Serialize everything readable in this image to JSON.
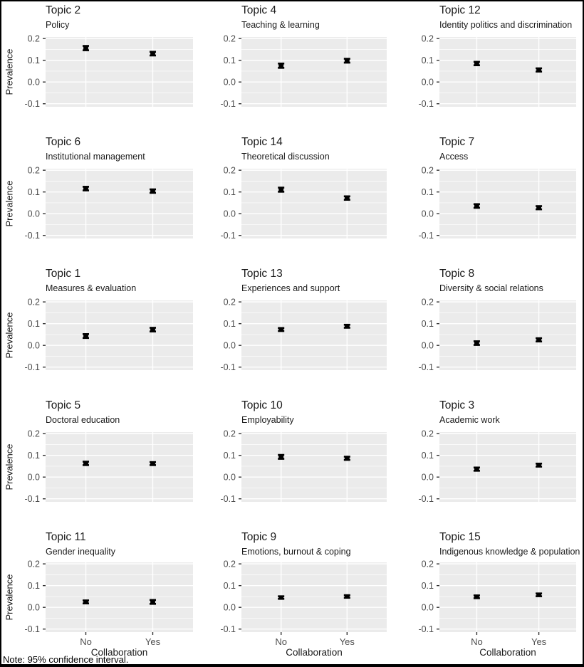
{
  "figure": {
    "note": "Note: 95% confidence interval.",
    "colors": {
      "panel_bg": "#ebebeb",
      "grid": "#ffffff",
      "point": "#000000",
      "tick_mark": "#333333",
      "tick_label": "#4d4d4d",
      "title_text": "#1a1a1a",
      "border": "#000000"
    }
  },
  "chart_data": {
    "type": "pointrange-facets",
    "facet_grid": {
      "rows": 5,
      "cols": 3
    },
    "xlabel": "Collaboration",
    "ylabel": "Prevalence",
    "categories": [
      "No",
      "Yes"
    ],
    "y_ticks": [
      0.2,
      0.1,
      0.0,
      -0.1
    ],
    "y_minor_ticks": [
      0.15,
      0.05,
      -0.05
    ],
    "ylim": [
      -0.114,
      0.207
    ],
    "legend": "none",
    "panels": [
      {
        "title": "Topic 2",
        "subtitle": "Policy",
        "points": [
          {
            "category": "No",
            "mean": 0.156,
            "lo": 0.146,
            "hi": 0.166
          },
          {
            "category": "Yes",
            "mean": 0.13,
            "lo": 0.122,
            "hi": 0.139
          }
        ]
      },
      {
        "title": "Topic 4",
        "subtitle": "Teaching & learning",
        "points": [
          {
            "category": "No",
            "mean": 0.075,
            "lo": 0.065,
            "hi": 0.085
          },
          {
            "category": "Yes",
            "mean": 0.098,
            "lo": 0.089,
            "hi": 0.107
          }
        ]
      },
      {
        "title": "Topic 12",
        "subtitle": "Identity politics and discrimination",
        "points": [
          {
            "category": "No",
            "mean": 0.085,
            "lo": 0.077,
            "hi": 0.093
          },
          {
            "category": "Yes",
            "mean": 0.055,
            "lo": 0.048,
            "hi": 0.063
          }
        ]
      },
      {
        "title": "Topic 6",
        "subtitle": "Institutional management",
        "points": [
          {
            "category": "No",
            "mean": 0.115,
            "lo": 0.107,
            "hi": 0.124
          },
          {
            "category": "Yes",
            "mean": 0.104,
            "lo": 0.096,
            "hi": 0.112
          }
        ]
      },
      {
        "title": "Topic 14",
        "subtitle": "Theoretical discussion",
        "points": [
          {
            "category": "No",
            "mean": 0.11,
            "lo": 0.101,
            "hi": 0.12
          },
          {
            "category": "Yes",
            "mean": 0.072,
            "lo": 0.064,
            "hi": 0.08
          }
        ]
      },
      {
        "title": "Topic 7",
        "subtitle": "Access",
        "points": [
          {
            "category": "No",
            "mean": 0.035,
            "lo": 0.027,
            "hi": 0.044
          },
          {
            "category": "Yes",
            "mean": 0.027,
            "lo": 0.02,
            "hi": 0.035
          }
        ]
      },
      {
        "title": "Topic 1",
        "subtitle": "Measures & evaluation",
        "points": [
          {
            "category": "No",
            "mean": 0.043,
            "lo": 0.034,
            "hi": 0.052
          },
          {
            "category": "Yes",
            "mean": 0.072,
            "lo": 0.064,
            "hi": 0.081
          }
        ]
      },
      {
        "title": "Topic 13",
        "subtitle": "Experiences and support",
        "points": [
          {
            "category": "No",
            "mean": 0.073,
            "lo": 0.066,
            "hi": 0.08
          },
          {
            "category": "Yes",
            "mean": 0.088,
            "lo": 0.081,
            "hi": 0.095
          }
        ]
      },
      {
        "title": "Topic 8",
        "subtitle": "Diversity & social relations",
        "points": [
          {
            "category": "No",
            "mean": 0.01,
            "lo": 0.002,
            "hi": 0.019
          },
          {
            "category": "Yes",
            "mean": 0.025,
            "lo": 0.018,
            "hi": 0.033
          }
        ]
      },
      {
        "title": "Topic 5",
        "subtitle": "Doctoral education",
        "points": [
          {
            "category": "No",
            "mean": 0.063,
            "lo": 0.055,
            "hi": 0.071
          },
          {
            "category": "Yes",
            "mean": 0.062,
            "lo": 0.055,
            "hi": 0.069
          }
        ]
      },
      {
        "title": "Topic 10",
        "subtitle": "Employability",
        "points": [
          {
            "category": "No",
            "mean": 0.093,
            "lo": 0.084,
            "hi": 0.102
          },
          {
            "category": "Yes",
            "mean": 0.086,
            "lo": 0.079,
            "hi": 0.094
          }
        ]
      },
      {
        "title": "Topic 3",
        "subtitle": "Academic work",
        "points": [
          {
            "category": "No",
            "mean": 0.036,
            "lo": 0.029,
            "hi": 0.044
          },
          {
            "category": "Yes",
            "mean": 0.055,
            "lo": 0.048,
            "hi": 0.062
          }
        ]
      },
      {
        "title": "Topic 11",
        "subtitle": "Gender inequality",
        "points": [
          {
            "category": "No",
            "mean": 0.025,
            "lo": 0.018,
            "hi": 0.032
          },
          {
            "category": "Yes",
            "mean": 0.025,
            "lo": 0.016,
            "hi": 0.034
          }
        ]
      },
      {
        "title": "Topic 9",
        "subtitle": "Emotions, burnout & coping",
        "points": [
          {
            "category": "No",
            "mean": 0.045,
            "lo": 0.039,
            "hi": 0.051
          },
          {
            "category": "Yes",
            "mean": 0.05,
            "lo": 0.044,
            "hi": 0.056
          }
        ]
      },
      {
        "title": "Topic 15",
        "subtitle": "Indigenous knowledge & population",
        "points": [
          {
            "category": "No",
            "mean": 0.048,
            "lo": 0.042,
            "hi": 0.055
          },
          {
            "category": "Yes",
            "mean": 0.057,
            "lo": 0.051,
            "hi": 0.064
          }
        ]
      }
    ]
  }
}
